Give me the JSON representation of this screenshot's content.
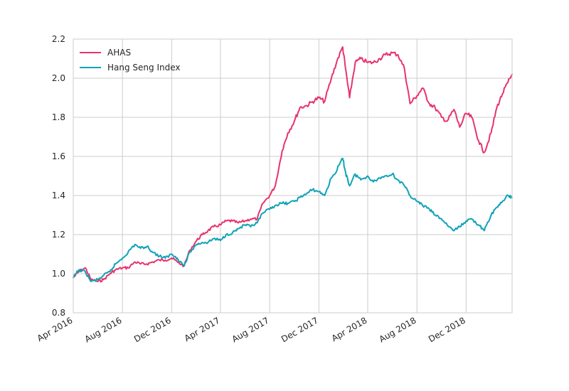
{
  "chart_data": {
    "type": "line",
    "title": "",
    "xlabel": "",
    "ylabel": "",
    "ylim": [
      0.8,
      2.2
    ],
    "xlim": [
      "2016-04-01",
      "2019-03-25"
    ],
    "grid": true,
    "legend_position": "top-left",
    "x_tick_labels": [
      "Apr 2016",
      "Aug 2016",
      "Dec 2016",
      "Apr 2017",
      "Aug 2017",
      "Dec 2017",
      "Apr 2018",
      "Aug 2018",
      "Dec 2018"
    ],
    "x_tick_dates": [
      "2016-04-01",
      "2016-08-01",
      "2016-12-01",
      "2017-04-01",
      "2017-08-01",
      "2017-12-01",
      "2018-04-01",
      "2018-08-01",
      "2018-12-01"
    ],
    "y_ticks": [
      0.8,
      1.0,
      1.2,
      1.4,
      1.6,
      1.8,
      2.0,
      2.2
    ],
    "y_tick_labels": [
      "0.8",
      "1.0",
      "1.2",
      "1.4",
      "1.6",
      "1.8",
      "2.0",
      "2.2"
    ],
    "series": [
      {
        "name": "AHAS",
        "color": "#e8336d",
        "x": [
          "2016-04-01",
          "2016-04-15",
          "2016-05-01",
          "2016-05-15",
          "2016-06-01",
          "2016-06-15",
          "2016-07-01",
          "2016-07-15",
          "2016-08-01",
          "2016-08-15",
          "2016-09-01",
          "2016-09-15",
          "2016-10-01",
          "2016-10-15",
          "2016-11-01",
          "2016-11-15",
          "2016-12-01",
          "2016-12-15",
          "2017-01-01",
          "2017-01-15",
          "2017-02-01",
          "2017-02-15",
          "2017-03-01",
          "2017-03-15",
          "2017-04-01",
          "2017-04-15",
          "2017-05-01",
          "2017-05-15",
          "2017-06-01",
          "2017-06-15",
          "2017-07-01",
          "2017-07-15",
          "2017-08-01",
          "2017-08-15",
          "2017-09-01",
          "2017-09-15",
          "2017-10-01",
          "2017-10-15",
          "2017-11-01",
          "2017-11-15",
          "2017-12-01",
          "2017-12-15",
          "2018-01-01",
          "2018-01-15",
          "2018-01-29",
          "2018-02-05",
          "2018-02-15",
          "2018-03-01",
          "2018-03-15",
          "2018-04-01",
          "2018-04-15",
          "2018-05-01",
          "2018-05-15",
          "2018-06-01",
          "2018-06-15",
          "2018-07-01",
          "2018-07-15",
          "2018-08-01",
          "2018-08-15",
          "2018-09-01",
          "2018-09-15",
          "2018-10-01",
          "2018-10-15",
          "2018-11-01",
          "2018-11-15",
          "2018-12-01",
          "2018-12-15",
          "2019-01-01",
          "2019-01-15",
          "2019-02-01",
          "2019-02-15",
          "2019-03-01",
          "2019-03-15",
          "2019-03-25"
        ],
        "y": [
          0.98,
          1.01,
          1.03,
          0.97,
          0.96,
          0.97,
          1.0,
          1.02,
          1.03,
          1.03,
          1.06,
          1.05,
          1.05,
          1.06,
          1.07,
          1.07,
          1.08,
          1.06,
          1.04,
          1.12,
          1.17,
          1.2,
          1.22,
          1.24,
          1.25,
          1.27,
          1.27,
          1.26,
          1.27,
          1.28,
          1.28,
          1.36,
          1.4,
          1.45,
          1.63,
          1.72,
          1.78,
          1.85,
          1.86,
          1.88,
          1.9,
          1.88,
          2.0,
          2.09,
          2.16,
          2.05,
          1.9,
          2.08,
          2.1,
          2.08,
          2.08,
          2.1,
          2.12,
          2.13,
          2.12,
          2.05,
          1.87,
          1.91,
          1.95,
          1.87,
          1.85,
          1.8,
          1.78,
          1.84,
          1.75,
          1.82,
          1.8,
          1.68,
          1.62,
          1.72,
          1.85,
          1.92,
          1.98,
          2.02
        ]
      },
      {
        "name": "Hang Seng Index",
        "color": "#0fa3b7",
        "x": [
          "2016-04-01",
          "2016-04-15",
          "2016-05-01",
          "2016-05-15",
          "2016-06-01",
          "2016-06-15",
          "2016-07-01",
          "2016-07-15",
          "2016-08-01",
          "2016-08-15",
          "2016-09-01",
          "2016-09-15",
          "2016-10-01",
          "2016-10-15",
          "2016-11-01",
          "2016-11-15",
          "2016-12-01",
          "2016-12-15",
          "2017-01-01",
          "2017-01-15",
          "2017-02-01",
          "2017-02-15",
          "2017-03-01",
          "2017-03-15",
          "2017-04-01",
          "2017-04-15",
          "2017-05-01",
          "2017-05-15",
          "2017-06-01",
          "2017-06-15",
          "2017-07-01",
          "2017-07-15",
          "2017-08-01",
          "2017-08-15",
          "2017-09-01",
          "2017-09-15",
          "2017-10-01",
          "2017-10-15",
          "2017-11-01",
          "2017-11-15",
          "2017-12-01",
          "2017-12-15",
          "2018-01-01",
          "2018-01-15",
          "2018-01-29",
          "2018-02-05",
          "2018-02-15",
          "2018-03-01",
          "2018-03-15",
          "2018-04-01",
          "2018-04-15",
          "2018-05-01",
          "2018-05-15",
          "2018-06-01",
          "2018-06-15",
          "2018-07-01",
          "2018-07-15",
          "2018-08-01",
          "2018-08-15",
          "2018-09-01",
          "2018-09-15",
          "2018-10-01",
          "2018-10-15",
          "2018-11-01",
          "2018-11-15",
          "2018-12-01",
          "2018-12-15",
          "2019-01-01",
          "2019-01-15",
          "2019-02-01",
          "2019-02-15",
          "2019-03-01",
          "2019-03-15",
          "2019-03-25"
        ],
        "y": [
          0.98,
          1.02,
          1.01,
          0.96,
          0.97,
          0.99,
          1.01,
          1.05,
          1.08,
          1.11,
          1.15,
          1.13,
          1.14,
          1.11,
          1.09,
          1.08,
          1.1,
          1.08,
          1.04,
          1.11,
          1.15,
          1.16,
          1.16,
          1.18,
          1.17,
          1.2,
          1.21,
          1.23,
          1.25,
          1.24,
          1.26,
          1.31,
          1.33,
          1.35,
          1.36,
          1.36,
          1.37,
          1.39,
          1.41,
          1.43,
          1.42,
          1.4,
          1.49,
          1.53,
          1.59,
          1.52,
          1.45,
          1.51,
          1.48,
          1.5,
          1.47,
          1.49,
          1.5,
          1.51,
          1.48,
          1.45,
          1.4,
          1.37,
          1.35,
          1.33,
          1.3,
          1.28,
          1.25,
          1.22,
          1.24,
          1.27,
          1.28,
          1.25,
          1.22,
          1.3,
          1.34,
          1.37,
          1.4,
          1.39
        ]
      }
    ]
  }
}
